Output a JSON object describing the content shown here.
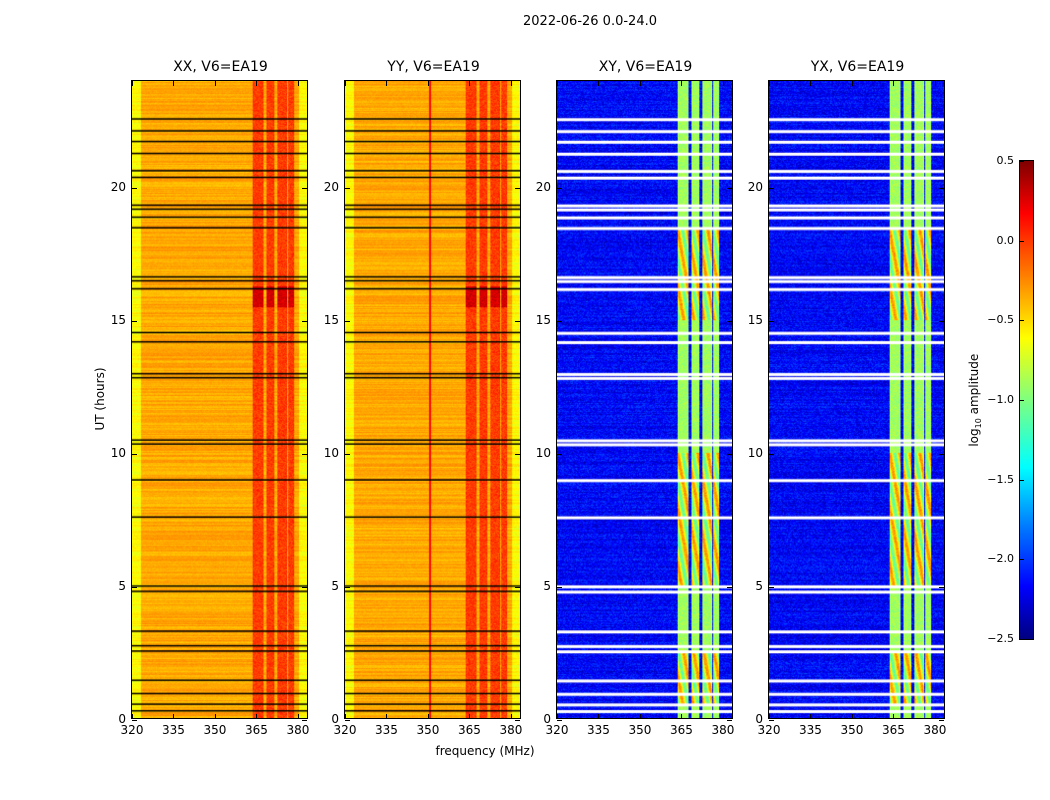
{
  "title": "2022-06-26 0.0-24.0",
  "xlabel": "frequency (MHz)",
  "ylabel": "UT (hours)",
  "colorbar": {
    "label_main": "log",
    "label_sub": "10",
    "label_rest": " amplitude",
    "ticks": [
      "0.5",
      "0.0",
      "−0.5",
      "−1.0",
      "−1.5",
      "−2.0",
      "−2.5"
    ],
    "tick_values": [
      0.5,
      0.0,
      -0.5,
      -1.0,
      -1.5,
      -2.0,
      -2.5
    ],
    "range": [
      -2.5,
      0.5
    ],
    "colormap": "jet"
  },
  "chart_data": {
    "type": "heatmap",
    "xlim": [
      320,
      384
    ],
    "ylim": [
      0,
      24
    ],
    "xticks": [
      "320",
      "335",
      "350",
      "365",
      "380"
    ],
    "xtick_values": [
      320,
      335,
      350,
      365,
      380
    ],
    "yticks": [
      "0",
      "5",
      "10",
      "15",
      "20"
    ],
    "ytick_values": [
      0,
      5,
      10,
      15,
      20
    ],
    "bands_mhz": [
      [
        364,
        368
      ],
      [
        369,
        372
      ],
      [
        373,
        376.5
      ],
      [
        377,
        379
      ]
    ],
    "flagged_hours": [
      0.3,
      0.55,
      0.95,
      1.45,
      2.55,
      2.75,
      3.3,
      4.8,
      5.0,
      7.6,
      9.0,
      10.35,
      10.5,
      12.85,
      13.0,
      14.2,
      14.55,
      16.2,
      16.5,
      16.65,
      18.5,
      18.9,
      19.2,
      19.35,
      20.4,
      20.65,
      21.3,
      21.75,
      22.15,
      22.6
    ],
    "panels": [
      {
        "title": "XX, V6=EA19",
        "base_level": -0.45,
        "band_level": -0.05,
        "flag_color": "#000000"
      },
      {
        "title": "YY, V6=EA19",
        "base_level": -0.45,
        "band_level": -0.05,
        "flag_color": "#000000"
      },
      {
        "title": "XY, V6=EA19",
        "base_level": -2.2,
        "band_level": -0.9,
        "flag_color": "#ffffff"
      },
      {
        "title": "YX, V6=EA19",
        "base_level": -2.2,
        "band_level": -0.9,
        "flag_color": "#ffffff"
      }
    ]
  }
}
